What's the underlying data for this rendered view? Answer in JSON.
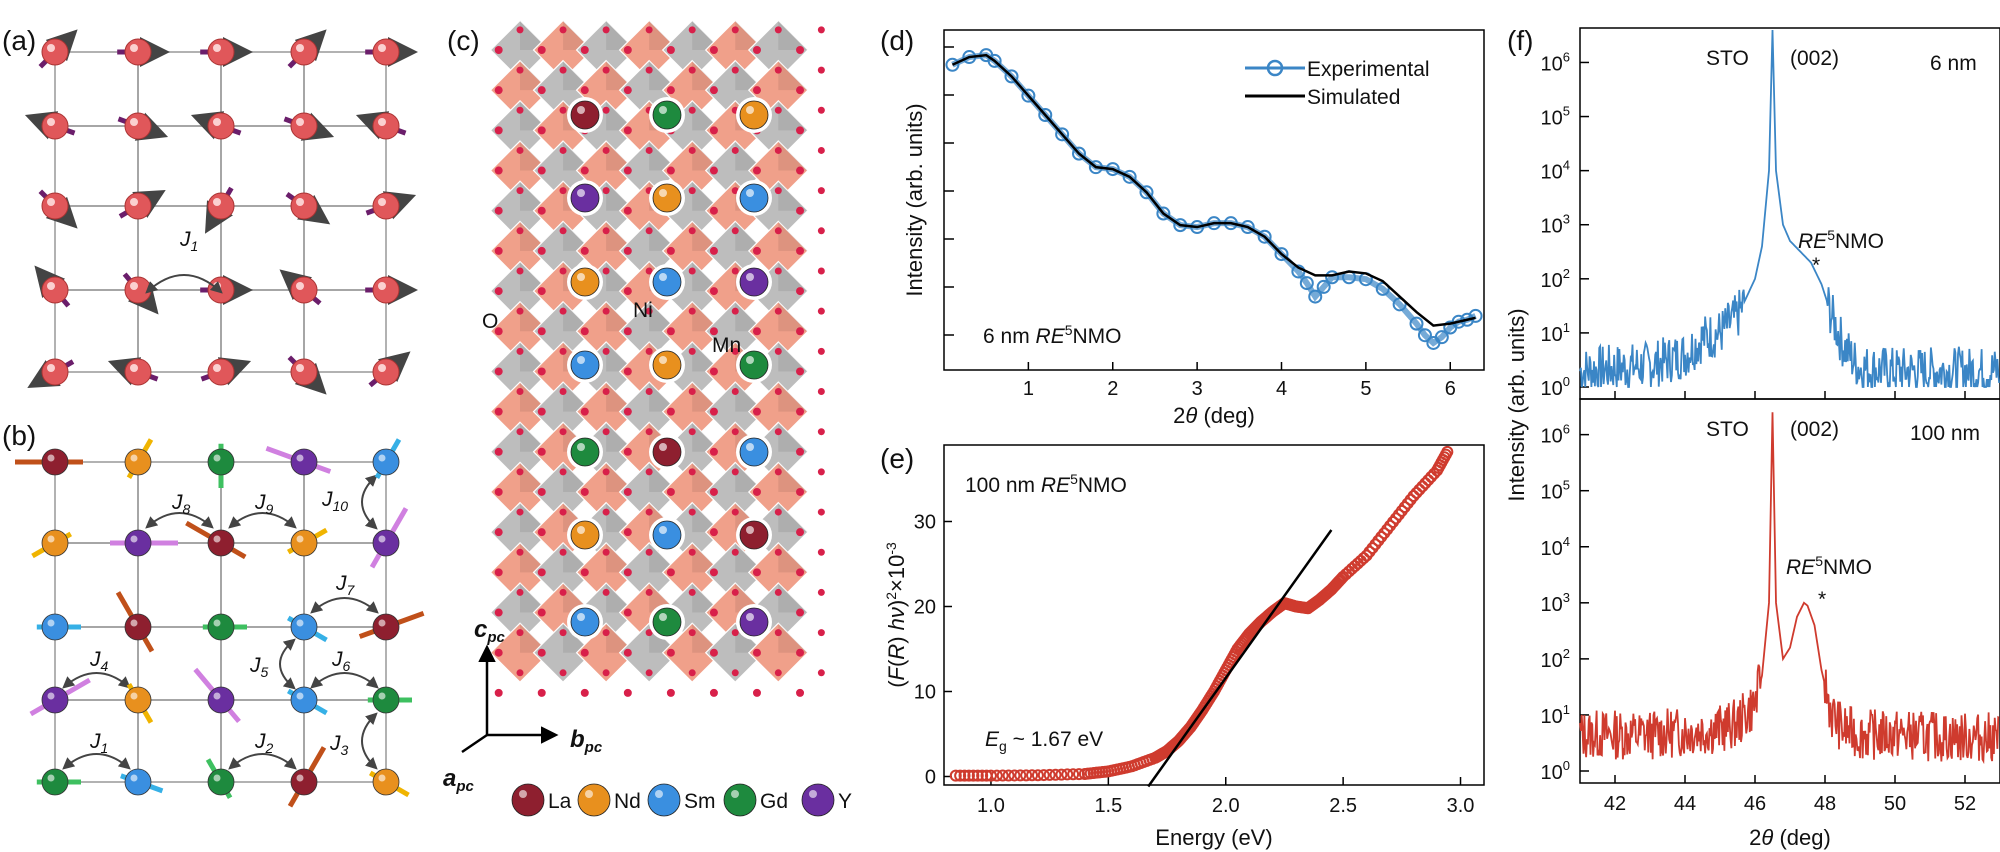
{
  "panel_labels": {
    "a": "(a)",
    "b": "(b)",
    "c": "(c)",
    "d": "(d)",
    "e": "(e)",
    "f": "(f)"
  },
  "colors": {
    "la": "#8e1f2f",
    "nd": "#e8901e",
    "sm": "#3a8fe0",
    "gd": "#1e8a3e",
    "y": "#6a2fa0",
    "atom_a": "#e0575a",
    "arrow_a": "#6b1e6b",
    "octa_ni": "#bdbdbd",
    "octa_mn": "#f0a08a",
    "oxygen": "#d8204a",
    "exp_blue": "#3b86c6",
    "sim_black": "#000000",
    "red_data": "#cf3b2e"
  },
  "panel_a": {
    "coupling": "J",
    "coupling_sub": "1"
  },
  "panel_b": {
    "couplings": [
      {
        "j": "J",
        "sub": "8"
      },
      {
        "j": "J",
        "sub": "9"
      },
      {
        "j": "J",
        "sub": "10"
      },
      {
        "j": "J",
        "sub": "7"
      },
      {
        "j": "J",
        "sub": "4"
      },
      {
        "j": "J",
        "sub": "5"
      },
      {
        "j": "J",
        "sub": "6"
      },
      {
        "j": "J",
        "sub": "1"
      },
      {
        "j": "J",
        "sub": "2"
      },
      {
        "j": "J",
        "sub": "3"
      }
    ]
  },
  "panel_c": {
    "site_labels": {
      "o": "O",
      "ni": "Ni",
      "mn": "Mn"
    },
    "axes": {
      "c": "c",
      "b": "b",
      "a": "a",
      "sub": "pc"
    },
    "legend": [
      "La",
      "Nd",
      "Sm",
      "Gd",
      "Y"
    ]
  },
  "chart_data": [
    {
      "panel": "d",
      "type": "line",
      "xlabel_pre": "2",
      "xlabel_theta": "θ",
      "xlabel_post": " (deg)",
      "ylabel": "Intensity (arb. units)",
      "xlim": [
        0,
        6.4
      ],
      "xticks": [
        "1",
        "2",
        "3",
        "4",
        "5",
        "6"
      ],
      "annotation": {
        "pre": "6 nm ",
        "italic": "RE",
        "sup": "5",
        "post": "NMO"
      },
      "legend": [
        "Experimental",
        "Simulated"
      ],
      "series": [
        {
          "name": "Experimental",
          "x": [
            0.1,
            0.3,
            0.5,
            0.6,
            0.8,
            1.0,
            1.2,
            1.4,
            1.6,
            1.8,
            2.0,
            2.2,
            2.4,
            2.6,
            2.8,
            3.0,
            3.2,
            3.4,
            3.6,
            3.8,
            4.0,
            4.2,
            4.3,
            4.4,
            4.5,
            4.6,
            4.8,
            5.0,
            5.2,
            5.4,
            5.6,
            5.7,
            5.8,
            5.9,
            6.0,
            6.1,
            6.2,
            6.3
          ],
          "y": [
            8.6,
            8.8,
            8.85,
            8.7,
            8.3,
            7.8,
            7.3,
            6.8,
            6.3,
            5.95,
            5.9,
            5.7,
            5.3,
            4.75,
            4.45,
            4.4,
            4.5,
            4.5,
            4.4,
            4.15,
            3.7,
            3.25,
            2.95,
            2.6,
            2.85,
            3.1,
            3.1,
            3.05,
            2.8,
            2.4,
            1.9,
            1.6,
            1.4,
            1.55,
            1.8,
            1.95,
            2.0,
            2.1
          ]
        },
        {
          "name": "Simulated",
          "x": [
            0.1,
            0.3,
            0.5,
            0.6,
            0.8,
            1.0,
            1.2,
            1.4,
            1.6,
            1.8,
            2.0,
            2.2,
            2.4,
            2.6,
            2.8,
            3.0,
            3.2,
            3.4,
            3.6,
            3.8,
            4.0,
            4.2,
            4.4,
            4.6,
            4.8,
            5.0,
            5.2,
            5.4,
            5.6,
            5.8,
            6.0,
            6.2,
            6.3
          ],
          "y": [
            8.6,
            8.8,
            8.85,
            8.7,
            8.3,
            7.8,
            7.3,
            6.8,
            6.3,
            5.95,
            5.9,
            5.7,
            5.3,
            4.75,
            4.45,
            4.4,
            4.5,
            4.5,
            4.4,
            4.15,
            3.7,
            3.35,
            3.15,
            3.15,
            3.25,
            3.2,
            3.0,
            2.6,
            2.2,
            1.85,
            1.9,
            2.0,
            2.05
          ]
        }
      ]
    },
    {
      "panel": "e",
      "type": "scatter",
      "xlabel": "Energy (eV)",
      "ylabel_pre": "(",
      "ylabel_it1": "F",
      "ylabel_mid": "(",
      "ylabel_it2": "R",
      "ylabel_mid2": ") ",
      "ylabel_it3": "hν",
      "ylabel_post": ")",
      "ylabel_sup": "2",
      "ylabel_tail": "×10",
      "ylabel_exp": "-3",
      "xlim": [
        0.8,
        3.1
      ],
      "ylim": [
        -1,
        39
      ],
      "xticks": [
        "1.0",
        "1.5",
        "2.0",
        "2.5",
        "3.0"
      ],
      "yticks": [
        "0",
        "10",
        "20",
        "30"
      ],
      "annotation": {
        "pre": "100 nm ",
        "italic": "RE",
        "sup": "5",
        "post": "NMO"
      },
      "gap_label": {
        "it": "E",
        "sub": "g",
        "post": " ~ 1.67 eV"
      },
      "fit_line": {
        "x": [
          1.67,
          2.45
        ],
        "y": [
          0,
          29
        ]
      },
      "series": [
        {
          "name": "data",
          "x": [
            0.85,
            1.0,
            1.2,
            1.4,
            1.5,
            1.6,
            1.7,
            1.75,
            1.8,
            1.85,
            1.9,
            1.95,
            2.0,
            2.05,
            2.1,
            2.15,
            2.2,
            2.25,
            2.3,
            2.35,
            2.4,
            2.45,
            2.5,
            2.6,
            2.7,
            2.8,
            2.9,
            2.95
          ],
          "y": [
            0.1,
            0.1,
            0.15,
            0.3,
            0.6,
            1.2,
            2.2,
            3.0,
            4.2,
            5.8,
            7.8,
            10.0,
            12.5,
            15.0,
            16.8,
            18.2,
            19.4,
            20.4,
            20.0,
            19.8,
            20.8,
            22.0,
            23.5,
            26.0,
            29.5,
            33.0,
            36.0,
            38.5
          ]
        }
      ]
    },
    {
      "panel": "f-top",
      "type": "line",
      "ylabel": "Intensity (arb. units)",
      "xlim": [
        41,
        53
      ],
      "ylim_log10": [
        0,
        6.6
      ],
      "ytick_exponents": [
        "0",
        "1",
        "2",
        "3",
        "4",
        "5",
        "6"
      ],
      "sto_label": "STO",
      "peak_label": "(002)",
      "thickness": "6 nm",
      "film_label": {
        "italic": "RE",
        "sup": "5",
        "post": "NMO"
      },
      "star": "*",
      "series": [
        {
          "name": "6 nm",
          "x": [
            41,
            42,
            43,
            44,
            44.5,
            45,
            45.5,
            46,
            46.2,
            46.4,
            46.5,
            46.6,
            46.8,
            47,
            47.3,
            47.6,
            47.9,
            48.2,
            48.5,
            48.8,
            49,
            50,
            51,
            52,
            53
          ],
          "y": [
            0.3,
            0.35,
            0.4,
            0.6,
            0.9,
            1.0,
            1.3,
            2.0,
            2.6,
            4.0,
            6.6,
            4.0,
            3.0,
            2.7,
            2.5,
            2.3,
            1.9,
            1.3,
            0.8,
            0.5,
            0.35,
            0.3,
            0.3,
            0.3,
            0.3
          ]
        }
      ]
    },
    {
      "panel": "f-bottom",
      "type": "line",
      "xlabel_pre": "2",
      "xlabel_theta": "θ",
      "xlabel_post": " (deg)",
      "xlim": [
        41,
        53
      ],
      "ylim_log10": [
        0,
        6.6
      ],
      "xticks": [
        "42",
        "44",
        "46",
        "48",
        "50",
        "52"
      ],
      "ytick_exponents": [
        "0",
        "1",
        "2",
        "3",
        "4",
        "5",
        "6"
      ],
      "sto_label": "STO",
      "peak_label": "(002)",
      "thickness": "100 nm",
      "film_label": {
        "italic": "RE",
        "sup": "5",
        "post": "NMO"
      },
      "star": "*",
      "series": [
        {
          "name": "100 nm",
          "x": [
            41,
            42,
            43,
            44,
            45,
            45.5,
            46,
            46.2,
            46.4,
            46.5,
            46.6,
            46.8,
            47,
            47.2,
            47.4,
            47.5,
            47.7,
            47.9,
            48.2,
            48.5,
            49,
            50,
            51,
            52,
            53
          ],
          "y": [
            0.65,
            0.65,
            0.65,
            0.7,
            0.75,
            0.85,
            1.2,
            1.7,
            3.0,
            6.4,
            3.0,
            2.0,
            2.2,
            2.75,
            3.0,
            2.95,
            2.6,
            1.8,
            1.0,
            0.75,
            0.65,
            0.65,
            0.62,
            0.6,
            0.6
          ]
        }
      ]
    }
  ]
}
